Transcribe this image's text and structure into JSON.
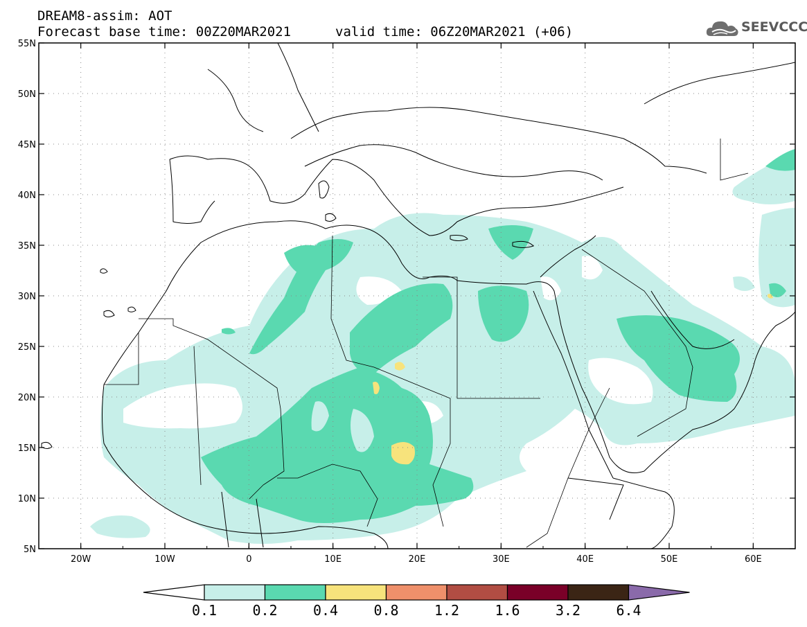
{
  "header": {
    "line1": "DREAM8-assim: AOT",
    "line2": "Forecast base time: 00Z20MAR2021",
    "valid": "valid time: 06Z20MAR2021 (+06)"
  },
  "logo": {
    "text": "SEEVCCC",
    "icon": "cloud-icon"
  },
  "map": {
    "lon_range": [
      -25,
      65
    ],
    "lat_range": [
      5,
      55
    ],
    "lon_ticks": [
      "20W",
      "10W",
      "0",
      "10E",
      "20E",
      "30E",
      "40E",
      "50E",
      "60E"
    ],
    "lat_ticks": [
      "55N",
      "50N",
      "45N",
      "40N",
      "35N",
      "30N",
      "25N",
      "20N",
      "15N",
      "10N",
      "5N"
    ],
    "grid": "dotted",
    "colors": {
      "0.1-0.2": "#c7efe9",
      "0.2-0.4": "#5ad9b0",
      "0.4-0.8": "#f7e37c",
      "0.8-1.2": "#ef906b",
      "1.2-1.6": "#b14d43",
      "1.6-3.2": "#7a0028",
      "3.2-6.4": "#3b2515",
      ">6.4": "#8a6aaa"
    }
  },
  "colorbar": {
    "labels": [
      "0.1",
      "0.2",
      "0.4",
      "0.8",
      "1.2",
      "1.6",
      "3.2",
      "6.4"
    ],
    "colors": [
      "#c7efe9",
      "#5ad9b0",
      "#f7e37c",
      "#ef906b",
      "#b14d43",
      "#7a0028",
      "#3b2515"
    ],
    "under_color": "#ffffff",
    "over_color": "#8a6aaa"
  }
}
